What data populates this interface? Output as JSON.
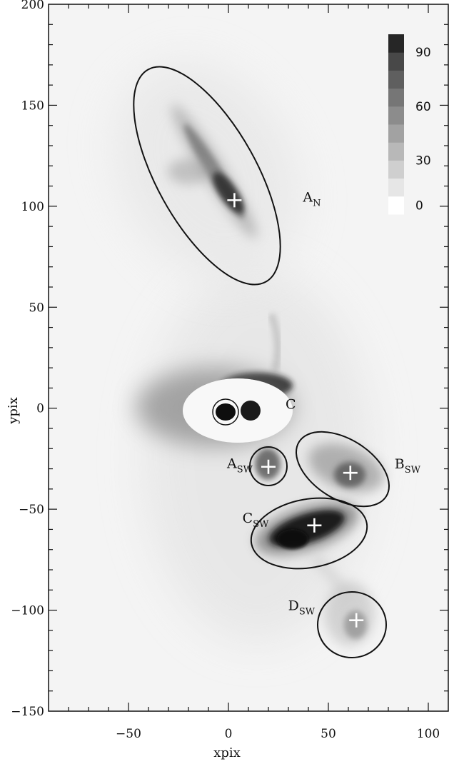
{
  "axes": {
    "xlabel": "xpix",
    "ylabel": "ypix",
    "xlim": [
      -90,
      110
    ],
    "ylim": [
      -150,
      200
    ],
    "x_ticks": [
      {
        "value": -50,
        "label": "−50"
      },
      {
        "value": 0,
        "label": "0"
      },
      {
        "value": 50,
        "label": "50"
      },
      {
        "value": 100,
        "label": "100"
      }
    ],
    "y_ticks": [
      {
        "value": 200,
        "label": "200"
      },
      {
        "value": 150,
        "label": "150"
      },
      {
        "value": 100,
        "label": "100"
      },
      {
        "value": 50,
        "label": "50"
      },
      {
        "value": 0,
        "label": "0"
      },
      {
        "value": -50,
        "label": "−50"
      },
      {
        "value": -100,
        "label": "−100"
      },
      {
        "value": -150,
        "label": "−150"
      }
    ]
  },
  "colorbar": {
    "labels": [
      {
        "value": 90,
        "label": "90"
      },
      {
        "value": 60,
        "label": "60"
      },
      {
        "value": 30,
        "label": "30"
      },
      {
        "value": 0,
        "label": "0"
      }
    ],
    "range": [
      0,
      100
    ],
    "colors": [
      "#ffffff",
      "#e6e6e6",
      "#cfcfcf",
      "#b8b8b8",
      "#a2a2a2",
      "#8c8c8c",
      "#767676",
      "#5f5f5f",
      "#484848",
      "#262626"
    ]
  },
  "regions": [
    {
      "label": "A",
      "subscript": "N",
      "cx": 3,
      "cy": 103,
      "marker": true
    },
    {
      "label": "C",
      "subscript": "",
      "cx": 5,
      "cy": -1,
      "marker": false
    },
    {
      "label": "A",
      "subscript": "SW",
      "cx": 20,
      "cy": -29,
      "marker": true
    },
    {
      "label": "B",
      "subscript": "SW",
      "cx": 61,
      "cy": -32,
      "marker": true
    },
    {
      "label": "C",
      "subscript": "SW",
      "cx": 43,
      "cy": -58,
      "marker": true
    },
    {
      "label": "D",
      "subscript": "SW",
      "cx": 64,
      "cy": -105,
      "marker": true
    }
  ]
}
